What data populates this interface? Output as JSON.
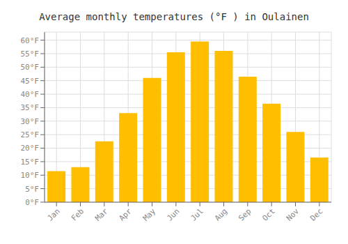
{
  "chart_data": {
    "type": "bar",
    "title": "Average monthly temperatures (°F ) in Oulainen",
    "categories": [
      "Jan",
      "Feb",
      "Mar",
      "Apr",
      "May",
      "Jun",
      "Jul",
      "Aug",
      "Sep",
      "Oct",
      "Nov",
      "Dec"
    ],
    "values": [
      11.5,
      13.0,
      22.5,
      33.0,
      46.0,
      55.5,
      59.5,
      56.0,
      46.5,
      36.5,
      26.0,
      16.5
    ],
    "color": "#FFBE00",
    "ylim": [
      0,
      63
    ],
    "yticks": [
      {
        "value": 0,
        "label": "0°F"
      },
      {
        "value": 5,
        "label": "5°F"
      },
      {
        "value": 10,
        "label": "10°F"
      },
      {
        "value": 15,
        "label": "15°F"
      },
      {
        "value": 20,
        "label": "20°F"
      },
      {
        "value": 25,
        "label": "25°F"
      },
      {
        "value": 30,
        "label": "30°F"
      },
      {
        "value": 35,
        "label": "35°F"
      },
      {
        "value": 40,
        "label": "40°F"
      },
      {
        "value": 45,
        "label": "45°F"
      },
      {
        "value": 50,
        "label": "50°F"
      },
      {
        "value": 55,
        "label": "55°F"
      },
      {
        "value": 60,
        "label": "60°F"
      }
    ],
    "grid": true
  }
}
